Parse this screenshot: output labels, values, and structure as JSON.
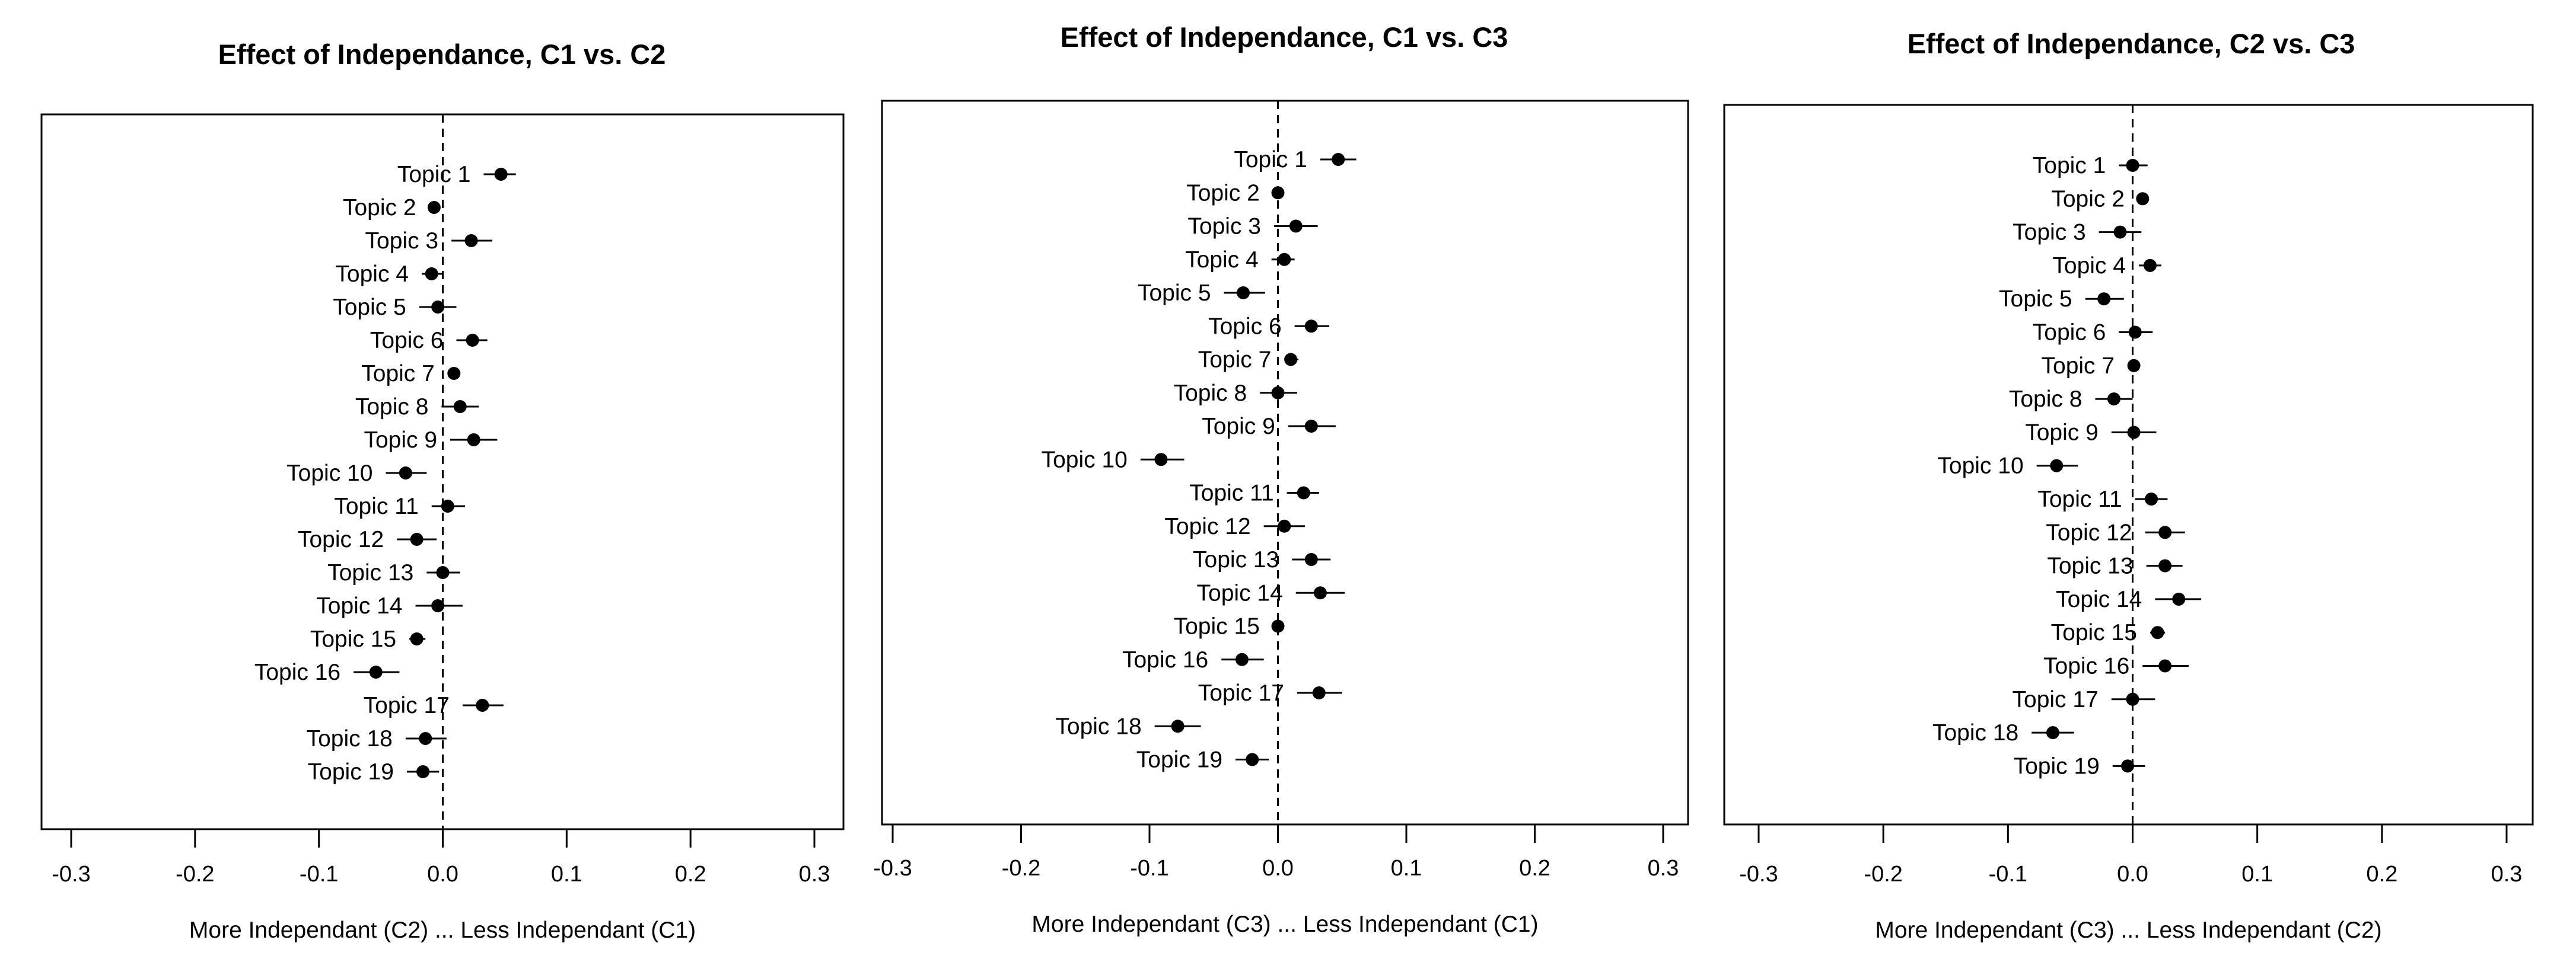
{
  "chart_data": [
    {
      "type": "scatter",
      "title": "Effect of Independance, C1 vs. C2",
      "xlabel": "More Independant (C2) ... Less Independant (C1)",
      "xlim": [
        -0.3,
        0.3
      ],
      "xticks": [
        -0.3,
        -0.2,
        -0.1,
        0.0,
        0.1,
        0.2,
        0.3
      ],
      "reference_line": 0.0,
      "points": [
        {
          "label": "Topic 1",
          "estimate": 0.047,
          "lower": 0.033,
          "upper": 0.059
        },
        {
          "label": "Topic 2",
          "estimate": -0.007,
          "lower": -0.011,
          "upper": -0.003
        },
        {
          "label": "Topic 3",
          "estimate": 0.023,
          "lower": 0.007,
          "upper": 0.04
        },
        {
          "label": "Topic 4",
          "estimate": -0.009,
          "lower": -0.017,
          "upper": 0.0
        },
        {
          "label": "Topic 5",
          "estimate": -0.004,
          "lower": -0.019,
          "upper": 0.011
        },
        {
          "label": "Topic 6",
          "estimate": 0.024,
          "lower": 0.011,
          "upper": 0.036
        },
        {
          "label": "Topic 7",
          "estimate": 0.009,
          "lower": 0.004,
          "upper": 0.014
        },
        {
          "label": "Topic 8",
          "estimate": 0.014,
          "lower": -0.001,
          "upper": 0.029
        },
        {
          "label": "Topic 9",
          "estimate": 0.025,
          "lower": 0.006,
          "upper": 0.044
        },
        {
          "label": "Topic 10",
          "estimate": -0.03,
          "lower": -0.046,
          "upper": -0.013
        },
        {
          "label": "Topic 11",
          "estimate": 0.004,
          "lower": -0.009,
          "upper": 0.018
        },
        {
          "label": "Topic 12",
          "estimate": -0.021,
          "lower": -0.037,
          "upper": -0.005
        },
        {
          "label": "Topic 13",
          "estimate": 0.0,
          "lower": -0.013,
          "upper": 0.014
        },
        {
          "label": "Topic 14",
          "estimate": -0.004,
          "lower": -0.022,
          "upper": 0.016
        },
        {
          "label": "Topic 15",
          "estimate": -0.021,
          "lower": -0.027,
          "upper": -0.014
        },
        {
          "label": "Topic 16",
          "estimate": -0.054,
          "lower": -0.072,
          "upper": -0.035
        },
        {
          "label": "Topic 17",
          "estimate": 0.032,
          "lower": 0.016,
          "upper": 0.049
        },
        {
          "label": "Topic 18",
          "estimate": -0.014,
          "lower": -0.03,
          "upper": 0.003
        },
        {
          "label": "Topic 19",
          "estimate": -0.016,
          "lower": -0.029,
          "upper": -0.003
        }
      ]
    },
    {
      "type": "scatter",
      "title": "Effect of Independance, C1 vs. C3",
      "xlabel": "More Independant (C3) ... Less Independant (C1)",
      "xlim": [
        -0.3,
        0.3
      ],
      "xticks": [
        -0.3,
        -0.2,
        -0.1,
        0.0,
        0.1,
        0.2,
        0.3
      ],
      "reference_line": 0.0,
      "points": [
        {
          "label": "Topic 1",
          "estimate": 0.047,
          "lower": 0.033,
          "upper": 0.061
        },
        {
          "label": "Topic 2",
          "estimate": 0.0,
          "lower": -0.004,
          "upper": 0.004
        },
        {
          "label": "Topic 3",
          "estimate": 0.014,
          "lower": -0.003,
          "upper": 0.031
        },
        {
          "label": "Topic 4",
          "estimate": 0.005,
          "lower": -0.005,
          "upper": 0.013
        },
        {
          "label": "Topic 5",
          "estimate": -0.027,
          "lower": -0.042,
          "upper": -0.01
        },
        {
          "label": "Topic 6",
          "estimate": 0.026,
          "lower": 0.013,
          "upper": 0.04
        },
        {
          "label": "Topic 7",
          "estimate": 0.01,
          "lower": 0.005,
          "upper": 0.016
        },
        {
          "label": "Topic 8",
          "estimate": 0.0,
          "lower": -0.014,
          "upper": 0.015
        },
        {
          "label": "Topic 9",
          "estimate": 0.026,
          "lower": 0.008,
          "upper": 0.045
        },
        {
          "label": "Topic 10",
          "estimate": -0.091,
          "lower": -0.107,
          "upper": -0.073
        },
        {
          "label": "Topic 11",
          "estimate": 0.02,
          "lower": 0.007,
          "upper": 0.032
        },
        {
          "label": "Topic 12",
          "estimate": 0.005,
          "lower": -0.011,
          "upper": 0.021
        },
        {
          "label": "Topic 13",
          "estimate": 0.026,
          "lower": 0.011,
          "upper": 0.041
        },
        {
          "label": "Topic 14",
          "estimate": 0.033,
          "lower": 0.014,
          "upper": 0.052
        },
        {
          "label": "Topic 15",
          "estimate": 0.0,
          "lower": -0.004,
          "upper": 0.005
        },
        {
          "label": "Topic 16",
          "estimate": -0.028,
          "lower": -0.044,
          "upper": -0.011
        },
        {
          "label": "Topic 17",
          "estimate": 0.032,
          "lower": 0.015,
          "upper": 0.05
        },
        {
          "label": "Topic 18",
          "estimate": -0.078,
          "lower": -0.096,
          "upper": -0.06
        },
        {
          "label": "Topic 19",
          "estimate": -0.02,
          "lower": -0.033,
          "upper": -0.007
        }
      ]
    },
    {
      "type": "scatter",
      "title": "Effect of Independance, C2 vs. C3",
      "xlabel": "More Independant (C3) ... Less Independant (C2)",
      "xlim": [
        -0.3,
        0.3
      ],
      "xticks": [
        -0.3,
        -0.2,
        -0.1,
        0.0,
        0.1,
        0.2,
        0.3
      ],
      "reference_line": 0.0,
      "points": [
        {
          "label": "Topic 1",
          "estimate": 0.0,
          "lower": -0.011,
          "upper": 0.012
        },
        {
          "label": "Topic 2",
          "estimate": 0.008,
          "lower": 0.004,
          "upper": 0.012
        },
        {
          "label": "Topic 3",
          "estimate": -0.01,
          "lower": -0.027,
          "upper": 0.007
        },
        {
          "label": "Topic 4",
          "estimate": 0.014,
          "lower": 0.005,
          "upper": 0.023
        },
        {
          "label": "Topic 5",
          "estimate": -0.023,
          "lower": -0.038,
          "upper": -0.007
        },
        {
          "label": "Topic 6",
          "estimate": 0.002,
          "lower": -0.011,
          "upper": 0.016
        },
        {
          "label": "Topic 7",
          "estimate": 0.001,
          "lower": -0.004,
          "upper": 0.006
        },
        {
          "label": "Topic 8",
          "estimate": -0.015,
          "lower": -0.03,
          "upper": 0.0
        },
        {
          "label": "Topic 9",
          "estimate": 0.001,
          "lower": -0.017,
          "upper": 0.019
        },
        {
          "label": "Topic 10",
          "estimate": -0.061,
          "lower": -0.077,
          "upper": -0.044
        },
        {
          "label": "Topic 11",
          "estimate": 0.015,
          "lower": 0.002,
          "upper": 0.028
        },
        {
          "label": "Topic 12",
          "estimate": 0.026,
          "lower": 0.01,
          "upper": 0.042
        },
        {
          "label": "Topic 13",
          "estimate": 0.026,
          "lower": 0.011,
          "upper": 0.04
        },
        {
          "label": "Topic 14",
          "estimate": 0.037,
          "lower": 0.018,
          "upper": 0.055
        },
        {
          "label": "Topic 15",
          "estimate": 0.02,
          "lower": 0.014,
          "upper": 0.026
        },
        {
          "label": "Topic 16",
          "estimate": 0.026,
          "lower": 0.008,
          "upper": 0.045
        },
        {
          "label": "Topic 17",
          "estimate": 0.0,
          "lower": -0.017,
          "upper": 0.018
        },
        {
          "label": "Topic 18",
          "estimate": -0.064,
          "lower": -0.081,
          "upper": -0.047
        },
        {
          "label": "Topic 19",
          "estimate": -0.004,
          "lower": -0.016,
          "upper": 0.01
        }
      ]
    }
  ]
}
